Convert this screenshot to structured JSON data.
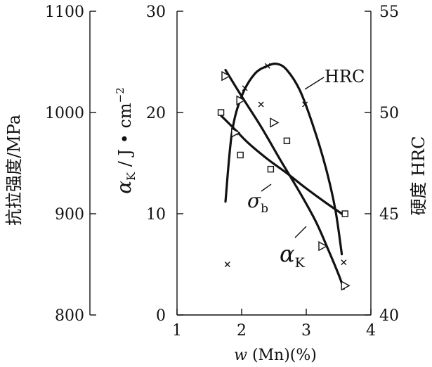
{
  "chart_data": {
    "type": "scatter",
    "xlabel": "w (Mn)(%)",
    "x_ticks": [
      "1",
      "2",
      "3",
      "4"
    ],
    "xlim": [
      1,
      4
    ],
    "left_axis_outer": {
      "label": "抗拉强度/MPa",
      "ticks": [
        "800",
        "900",
        "1000",
        "1100"
      ],
      "range": [
        800,
        1100
      ]
    },
    "left_axis_inner": {
      "label_symbol": "α",
      "label_sub": "K",
      "label_unit": " / J • cm",
      "label_exp": "−2",
      "ticks": [
        "0",
        "10",
        "20",
        "30"
      ],
      "range": [
        0,
        30
      ]
    },
    "right_axis": {
      "label": "硬度  HRC",
      "ticks": [
        "40",
        "45",
        "50",
        "55"
      ],
      "range": [
        40,
        55
      ]
    },
    "series": [
      {
        "key": "hrc",
        "marker": "x",
        "axis": "right",
        "points": [
          [
            1.78,
            42.5
          ],
          [
            1.9,
            49.0
          ],
          [
            2.05,
            51.2
          ],
          [
            2.3,
            50.4
          ],
          [
            2.4,
            52.3
          ],
          [
            2.98,
            50.4
          ],
          [
            3.58,
            42.6
          ]
        ],
        "curve": [
          [
            1.75,
            45.6
          ],
          [
            1.85,
            49.0
          ],
          [
            2.0,
            50.8
          ],
          [
            2.2,
            51.9
          ],
          [
            2.4,
            52.3
          ],
          [
            2.55,
            52.4
          ],
          [
            2.7,
            52.1
          ],
          [
            2.9,
            51.1
          ],
          [
            3.1,
            49.4
          ],
          [
            3.3,
            47.3
          ],
          [
            3.45,
            45.2
          ],
          [
            3.55,
            43.0
          ]
        ],
        "label": "HRC"
      },
      {
        "key": "sigma_b",
        "marker": "square",
        "axis": "left_outer",
        "points": [
          [
            1.68,
            1000
          ],
          [
            1.98,
            958
          ],
          [
            2.45,
            944
          ],
          [
            2.7,
            972
          ],
          [
            3.6,
            900
          ]
        ],
        "curve": [
          [
            1.68,
            997
          ],
          [
            1.9,
            983
          ],
          [
            2.1,
            970
          ],
          [
            2.4,
            954
          ],
          [
            2.7,
            940
          ],
          [
            3.0,
            925
          ],
          [
            3.3,
            911
          ],
          [
            3.55,
            900
          ]
        ],
        "label_symbol": "σ",
        "label_sub": "b"
      },
      {
        "key": "alpha_k",
        "marker": "triangle",
        "axis": "left_inner",
        "points": [
          [
            1.75,
            23.6
          ],
          [
            1.9,
            18.0
          ],
          [
            1.98,
            21.2
          ],
          [
            2.5,
            19.0
          ],
          [
            3.25,
            6.8
          ],
          [
            3.6,
            2.9
          ]
        ],
        "curve": [
          [
            1.75,
            24.2
          ],
          [
            2.0,
            21.6
          ],
          [
            2.3,
            18.6
          ],
          [
            2.6,
            15.3
          ],
          [
            2.9,
            12.1
          ],
          [
            3.15,
            9.2
          ],
          [
            3.35,
            6.3
          ],
          [
            3.5,
            4.0
          ],
          [
            3.58,
            2.6
          ]
        ],
        "label_symbol": "α",
        "label_sub": "K"
      }
    ]
  }
}
